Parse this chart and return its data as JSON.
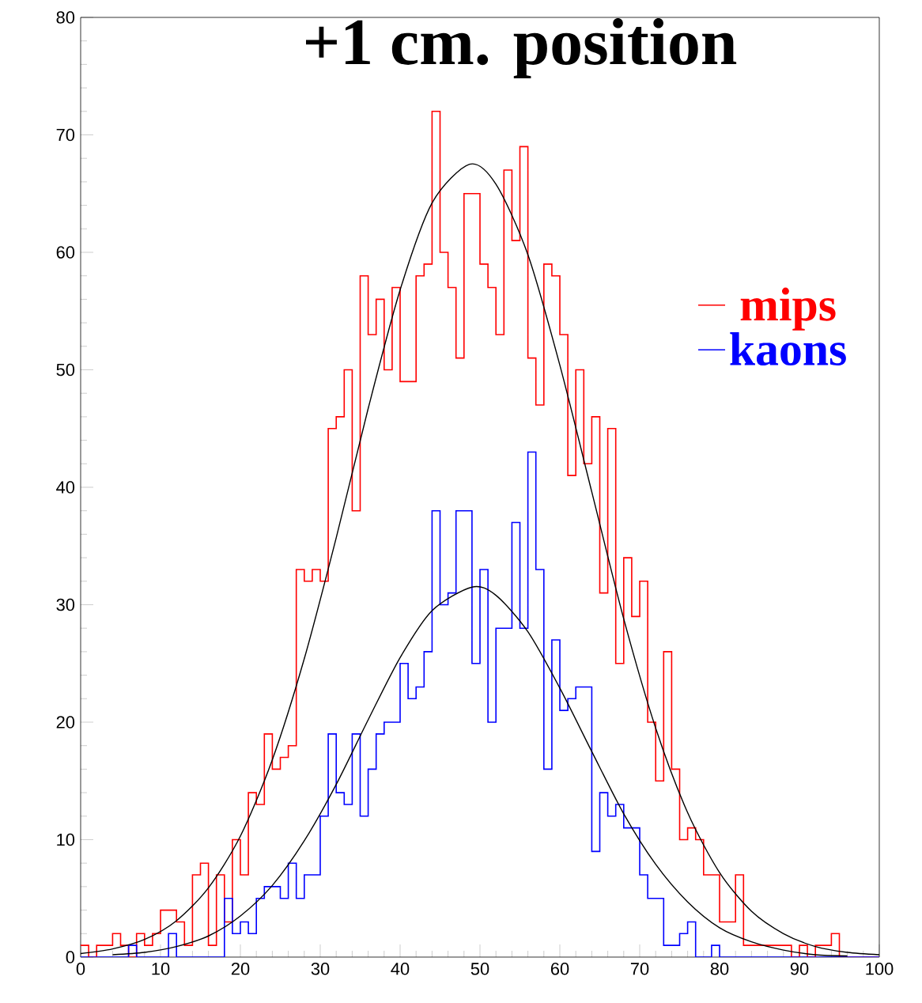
{
  "chart_data": {
    "type": "histogram",
    "title": "+1 cm. position",
    "bins": [
      0,
      1,
      2,
      3,
      4,
      5,
      6,
      7,
      8,
      9,
      10,
      11,
      12,
      13,
      14,
      15,
      16,
      17,
      18,
      19,
      20,
      21,
      22,
      23,
      24,
      25,
      26,
      27,
      28,
      29,
      30,
      31,
      32,
      33,
      34,
      35,
      36,
      37,
      38,
      39,
      40,
      41,
      42,
      43,
      44,
      45,
      46,
      47,
      48,
      49,
      50,
      51,
      52,
      53,
      54,
      55,
      56,
      57,
      58,
      59,
      60,
      61,
      62,
      63,
      64,
      65,
      66,
      67,
      68,
      69,
      70,
      71,
      72,
      73,
      74,
      75,
      76,
      77,
      78,
      79,
      80,
      81,
      82,
      83,
      84,
      85,
      86,
      87,
      88,
      89,
      90,
      91,
      92,
      93,
      94,
      95,
      96,
      97,
      98,
      99,
      100
    ],
    "series": [
      {
        "name": "mips",
        "color": "#ff0000",
        "values": [
          1,
          0,
          1,
          1,
          2,
          1,
          0,
          2,
          1,
          2,
          4,
          4,
          3,
          1,
          7,
          8,
          1,
          7,
          3,
          10,
          7,
          14,
          13,
          19,
          16,
          17,
          18,
          33,
          32,
          33,
          32,
          45,
          46,
          50,
          38,
          58,
          53,
          56,
          50,
          57,
          49,
          49,
          58,
          59,
          72,
          60,
          57,
          51,
          65,
          65,
          59,
          57,
          53,
          67,
          61,
          69,
          51,
          47,
          59,
          58,
          53,
          41,
          50,
          42,
          46,
          31,
          45,
          25,
          34,
          29,
          32,
          20,
          15,
          26,
          16,
          10,
          11,
          10,
          7,
          7,
          3,
          3,
          7,
          1,
          1,
          1,
          1,
          1,
          1,
          0,
          1,
          0,
          1,
          1,
          2,
          0,
          0,
          0,
          0,
          0
        ]
      },
      {
        "name": "kaons",
        "color": "#0000ff",
        "values": [
          0,
          0,
          0,
          0,
          0,
          0,
          1,
          0,
          0,
          0,
          0,
          2,
          0,
          0,
          0,
          0,
          0,
          0,
          5,
          2,
          3,
          2,
          5,
          6,
          6,
          5,
          8,
          5,
          7,
          7,
          12,
          19,
          14,
          13,
          19,
          12,
          16,
          19,
          20,
          20,
          25,
          22,
          23,
          26,
          38,
          30,
          31,
          38,
          38,
          25,
          33,
          20,
          28,
          28,
          37,
          28,
          43,
          33,
          16,
          27,
          21,
          22,
          23,
          23,
          9,
          14,
          12,
          13,
          11,
          11,
          7,
          5,
          5,
          1,
          1,
          2,
          3,
          0,
          0,
          1,
          0,
          0,
          0,
          0,
          0,
          0,
          0,
          0,
          0,
          0,
          0,
          0,
          0,
          0,
          0,
          0,
          0,
          0,
          0,
          0
        ]
      },
      {
        "type": "line",
        "color": "#000000",
        "x": [
          0,
          4,
          8,
          12,
          16,
          20,
          24,
          28,
          32,
          36,
          40,
          44,
          48.7,
          52,
          56,
          60,
          64,
          68,
          72,
          76,
          80,
          84,
          88,
          92,
          96,
          100
        ],
        "values": [
          0.3,
          0.7,
          1.5,
          3.1,
          5.9,
          10.3,
          16.8,
          25.4,
          35.7,
          46.7,
          56.8,
          64.2,
          67.5,
          65.8,
          59.8,
          50.4,
          39.6,
          28.8,
          19.5,
          12.3,
          7.2,
          3.9,
          2.0,
          0.9,
          0.4,
          0.2
        ]
      },
      {
        "type": "line",
        "color": "#000000",
        "x": [
          4,
          8,
          12,
          16,
          20,
          24,
          28,
          32,
          36,
          40,
          44,
          49,
          52,
          56,
          60,
          64,
          68,
          72,
          76,
          80,
          84,
          88,
          92,
          96
        ],
        "values": [
          0.2,
          0.4,
          0.9,
          1.8,
          3.5,
          6.1,
          9.9,
          14.7,
          20.2,
          25.5,
          29.5,
          31.5,
          30.8,
          27.7,
          22.9,
          17.5,
          12.2,
          7.9,
          4.7,
          2.5,
          1.3,
          0.6,
          0.2,
          0.1
        ]
      }
    ],
    "xlim": [
      0,
      100
    ],
    "ylim": [
      0,
      80
    ],
    "xticks": [
      0,
      10,
      20,
      30,
      40,
      50,
      60,
      70,
      80,
      90,
      100
    ],
    "yticks": [
      0,
      10,
      20,
      30,
      40,
      50,
      60,
      70,
      80
    ],
    "grid": false,
    "legend": "right"
  }
}
